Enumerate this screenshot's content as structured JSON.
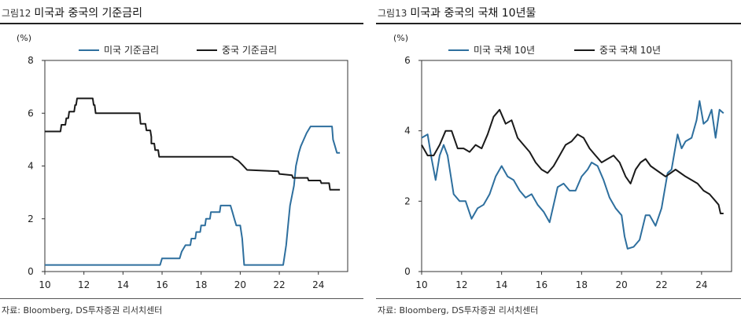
{
  "charts": [
    {
      "figure_label": "그림12",
      "title": "미국과 중국의 기준금리",
      "source": "자료: Bloomberg, DS투자증권 리서치센터"
    },
    {
      "figure_label": "그림13",
      "title": "미국과 중국의 국채 10년물",
      "source": "자료: Bloomberg, DS투자증권 리서치센터"
    }
  ],
  "chart_data": [
    {
      "type": "line",
      "title": "미국과 중국의 기준금리",
      "unit_label": "(%)",
      "xlim": [
        10,
        25.5
      ],
      "ylim": [
        0,
        8
      ],
      "xticks": [
        10,
        12,
        14,
        16,
        18,
        20,
        22,
        24
      ],
      "yticks": [
        0,
        2,
        4,
        6,
        8
      ],
      "grid": false,
      "legend_position": "top",
      "series": [
        {
          "name": "미국 기준금리",
          "color": "#2e6f9e",
          "points": [
            [
              10,
              0.25
            ],
            [
              15.9,
              0.25
            ],
            [
              16.0,
              0.5
            ],
            [
              16.9,
              0.5
            ],
            [
              17.0,
              0.75
            ],
            [
              17.2,
              1.0
            ],
            [
              17.45,
              1.0
            ],
            [
              17.5,
              1.25
            ],
            [
              17.7,
              1.25
            ],
            [
              17.75,
              1.5
            ],
            [
              17.95,
              1.5
            ],
            [
              18.0,
              1.75
            ],
            [
              18.2,
              1.75
            ],
            [
              18.25,
              2.0
            ],
            [
              18.45,
              2.0
            ],
            [
              18.5,
              2.25
            ],
            [
              18.95,
              2.25
            ],
            [
              19.0,
              2.5
            ],
            [
              19.5,
              2.5
            ],
            [
              19.6,
              2.25
            ],
            [
              19.7,
              2.0
            ],
            [
              19.8,
              1.75
            ],
            [
              20.0,
              1.75
            ],
            [
              20.1,
              1.25
            ],
            [
              20.2,
              0.25
            ],
            [
              22.2,
              0.25
            ],
            [
              22.25,
              0.5
            ],
            [
              22.35,
              1.0
            ],
            [
              22.45,
              1.75
            ],
            [
              22.55,
              2.5
            ],
            [
              22.75,
              3.25
            ],
            [
              22.85,
              4.0
            ],
            [
              23.0,
              4.5
            ],
            [
              23.1,
              4.75
            ],
            [
              23.25,
              5.0
            ],
            [
              23.4,
              5.25
            ],
            [
              23.6,
              5.5
            ],
            [
              24.7,
              5.5
            ],
            [
              24.75,
              5.0
            ],
            [
              24.85,
              4.75
            ],
            [
              24.95,
              4.5
            ],
            [
              25.1,
              4.5
            ]
          ]
        },
        {
          "name": "중국 기준금리",
          "color": "#1a1a1a",
          "points": [
            [
              10,
              5.31
            ],
            [
              10.8,
              5.31
            ],
            [
              10.85,
              5.56
            ],
            [
              11.05,
              5.56
            ],
            [
              11.1,
              5.81
            ],
            [
              11.2,
              5.81
            ],
            [
              11.25,
              6.06
            ],
            [
              11.5,
              6.06
            ],
            [
              11.55,
              6.31
            ],
            [
              11.6,
              6.31
            ],
            [
              11.65,
              6.56
            ],
            [
              12.45,
              6.56
            ],
            [
              12.5,
              6.31
            ],
            [
              12.55,
              6.31
            ],
            [
              12.6,
              6.0
            ],
            [
              14.85,
              6.0
            ],
            [
              14.9,
              5.6
            ],
            [
              15.15,
              5.6
            ],
            [
              15.2,
              5.35
            ],
            [
              15.4,
              5.35
            ],
            [
              15.45,
              5.1
            ],
            [
              15.45,
              4.85
            ],
            [
              15.6,
              4.85
            ],
            [
              15.65,
              4.6
            ],
            [
              15.8,
              4.6
            ],
            [
              15.85,
              4.35
            ],
            [
              19.6,
              4.35
            ],
            [
              19.65,
              4.31
            ],
            [
              19.9,
              4.2
            ],
            [
              20.1,
              4.05
            ],
            [
              20.35,
              3.85
            ],
            [
              21.95,
              3.8
            ],
            [
              22.0,
              3.7
            ],
            [
              22.65,
              3.65
            ],
            [
              22.7,
              3.55
            ],
            [
              23.45,
              3.55
            ],
            [
              23.5,
              3.45
            ],
            [
              24.1,
              3.45
            ],
            [
              24.15,
              3.35
            ],
            [
              24.55,
              3.35
            ],
            [
              24.6,
              3.1
            ],
            [
              25.1,
              3.1
            ]
          ]
        }
      ]
    },
    {
      "type": "line",
      "title": "미국과 중국의 국채 10년물",
      "unit_label": "(%)",
      "xlim": [
        10,
        25.5
      ],
      "ylim": [
        0,
        6
      ],
      "xticks": [
        10,
        12,
        14,
        16,
        18,
        20,
        22,
        24
      ],
      "yticks": [
        0,
        2,
        4,
        6
      ],
      "grid": false,
      "legend_position": "top",
      "series": [
        {
          "name": "미국 국채 10년",
          "color": "#2e6f9e",
          "points": [
            [
              10,
              3.8
            ],
            [
              10.3,
              3.9
            ],
            [
              10.5,
              3.2
            ],
            [
              10.7,
              2.6
            ],
            [
              10.9,
              3.3
            ],
            [
              11.1,
              3.6
            ],
            [
              11.3,
              3.3
            ],
            [
              11.6,
              2.2
            ],
            [
              11.9,
              2.0
            ],
            [
              12.2,
              2.0
            ],
            [
              12.5,
              1.5
            ],
            [
              12.8,
              1.8
            ],
            [
              13.1,
              1.9
            ],
            [
              13.4,
              2.2
            ],
            [
              13.7,
              2.7
            ],
            [
              14.0,
              3.0
            ],
            [
              14.3,
              2.7
            ],
            [
              14.6,
              2.6
            ],
            [
              14.9,
              2.3
            ],
            [
              15.2,
              2.1
            ],
            [
              15.5,
              2.2
            ],
            [
              15.8,
              1.9
            ],
            [
              16.1,
              1.7
            ],
            [
              16.4,
              1.4
            ],
            [
              16.8,
              2.4
            ],
            [
              17.1,
              2.5
            ],
            [
              17.4,
              2.3
            ],
            [
              17.7,
              2.3
            ],
            [
              18.0,
              2.7
            ],
            [
              18.3,
              2.9
            ],
            [
              18.5,
              3.1
            ],
            [
              18.8,
              3.0
            ],
            [
              19.1,
              2.6
            ],
            [
              19.4,
              2.1
            ],
            [
              19.7,
              1.8
            ],
            [
              20.0,
              1.6
            ],
            [
              20.15,
              1.0
            ],
            [
              20.3,
              0.65
            ],
            [
              20.6,
              0.7
            ],
            [
              20.9,
              0.9
            ],
            [
              21.2,
              1.6
            ],
            [
              21.4,
              1.6
            ],
            [
              21.7,
              1.3
            ],
            [
              22.0,
              1.8
            ],
            [
              22.3,
              2.8
            ],
            [
              22.5,
              2.9
            ],
            [
              22.8,
              3.9
            ],
            [
              23.0,
              3.5
            ],
            [
              23.2,
              3.7
            ],
            [
              23.5,
              3.8
            ],
            [
              23.75,
              4.3
            ],
            [
              23.9,
              4.85
            ],
            [
              24.1,
              4.2
            ],
            [
              24.3,
              4.3
            ],
            [
              24.5,
              4.6
            ],
            [
              24.7,
              3.8
            ],
            [
              24.9,
              4.6
            ],
            [
              25.1,
              4.5
            ]
          ]
        },
        {
          "name": "중국 국채 10년",
          "color": "#1a1a1a",
          "points": [
            [
              10,
              3.6
            ],
            [
              10.3,
              3.3
            ],
            [
              10.6,
              3.3
            ],
            [
              10.9,
              3.6
            ],
            [
              11.2,
              4.0
            ],
            [
              11.5,
              4.0
            ],
            [
              11.8,
              3.5
            ],
            [
              12.1,
              3.5
            ],
            [
              12.4,
              3.4
            ],
            [
              12.7,
              3.6
            ],
            [
              13.0,
              3.5
            ],
            [
              13.3,
              3.9
            ],
            [
              13.6,
              4.4
            ],
            [
              13.9,
              4.6
            ],
            [
              14.2,
              4.2
            ],
            [
              14.5,
              4.3
            ],
            [
              14.8,
              3.8
            ],
            [
              15.1,
              3.6
            ],
            [
              15.4,
              3.4
            ],
            [
              15.7,
              3.1
            ],
            [
              16.0,
              2.9
            ],
            [
              16.3,
              2.8
            ],
            [
              16.6,
              3.0
            ],
            [
              16.9,
              3.3
            ],
            [
              17.2,
              3.6
            ],
            [
              17.5,
              3.7
            ],
            [
              17.8,
              3.9
            ],
            [
              18.1,
              3.8
            ],
            [
              18.4,
              3.5
            ],
            [
              18.7,
              3.3
            ],
            [
              19.0,
              3.1
            ],
            [
              19.3,
              3.2
            ],
            [
              19.6,
              3.3
            ],
            [
              19.9,
              3.1
            ],
            [
              20.2,
              2.7
            ],
            [
              20.45,
              2.5
            ],
            [
              20.7,
              2.9
            ],
            [
              20.95,
              3.1
            ],
            [
              21.2,
              3.2
            ],
            [
              21.45,
              3.0
            ],
            [
              21.7,
              2.9
            ],
            [
              21.95,
              2.8
            ],
            [
              22.2,
              2.7
            ],
            [
              22.45,
              2.8
            ],
            [
              22.7,
              2.9
            ],
            [
              22.95,
              2.8
            ],
            [
              23.2,
              2.7
            ],
            [
              23.5,
              2.6
            ],
            [
              23.8,
              2.5
            ],
            [
              24.1,
              2.3
            ],
            [
              24.4,
              2.2
            ],
            [
              24.7,
              2.0
            ],
            [
              24.85,
              1.9
            ],
            [
              24.95,
              1.65
            ],
            [
              25.1,
              1.65
            ]
          ]
        }
      ]
    }
  ]
}
